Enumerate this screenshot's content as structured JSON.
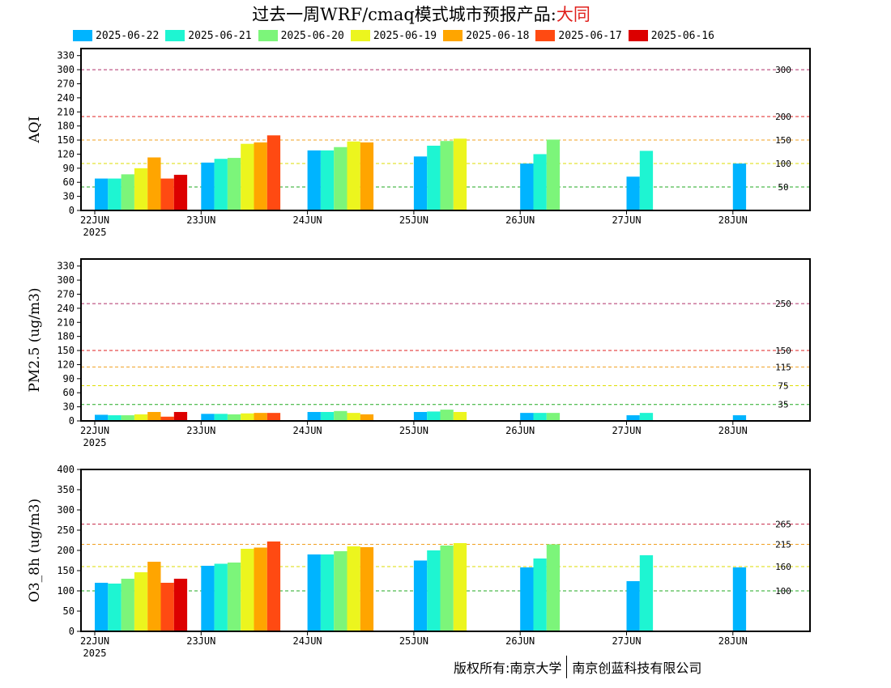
{
  "title": {
    "main": "过去一周WRF/cmaq模式城市预报产品:",
    "city": "大同"
  },
  "colors": {
    "title_city": "#e0201c",
    "series": [
      "#00b4ff",
      "#1ef5d2",
      "#7cf57a",
      "#ecf51e",
      "#ffa500",
      "#ff4a12",
      "#dc0000"
    ],
    "thresholds": {
      "green": "#22aa22",
      "yellow": "#dddd00",
      "orange": "#f0a020",
      "red": "#e02020",
      "purple": "#b0306a",
      "maroon": "#c83250"
    }
  },
  "legend": [
    "2025-06-22",
    "2025-06-21",
    "2025-06-20",
    "2025-06-19",
    "2025-06-18",
    "2025-06-17",
    "2025-06-16"
  ],
  "copyright": {
    "left": "版权所有:南京大学",
    "right": "南京创蓝科技有限公司"
  },
  "chart_data": [
    {
      "type": "bar",
      "ylabel": "AQI",
      "ylim": [
        0,
        345
      ],
      "yticks": [
        0,
        30,
        60,
        90,
        120,
        150,
        180,
        210,
        240,
        270,
        300,
        330
      ],
      "categories": [
        "22JUN",
        "23JUN",
        "24JUN",
        "25JUN",
        "26JUN",
        "27JUN",
        "28JUN"
      ],
      "year_label": "2025",
      "series": [
        {
          "name": "2025-06-22",
          "values": [
            68,
            102,
            128,
            115,
            100,
            72,
            100
          ]
        },
        {
          "name": "2025-06-21",
          "values": [
            68,
            110,
            128,
            138,
            120,
            127,
            null
          ]
        },
        {
          "name": "2025-06-20",
          "values": [
            77,
            112,
            135,
            148,
            151,
            null,
            null
          ]
        },
        {
          "name": "2025-06-19",
          "values": [
            90,
            142,
            147,
            153,
            null,
            null,
            null
          ]
        },
        {
          "name": "2025-06-18",
          "values": [
            113,
            145,
            145,
            null,
            null,
            null,
            null
          ]
        },
        {
          "name": "2025-06-17",
          "values": [
            68,
            160,
            null,
            null,
            null,
            null,
            null
          ]
        },
        {
          "name": "2025-06-16",
          "values": [
            76,
            null,
            null,
            null,
            null,
            null,
            null
          ]
        }
      ],
      "thresholds": [
        {
          "value": 50,
          "label": "50",
          "color": "green"
        },
        {
          "value": 100,
          "label": "100",
          "color": "yellow"
        },
        {
          "value": 150,
          "label": "150",
          "color": "orange"
        },
        {
          "value": 200,
          "label": "200",
          "color": "red"
        },
        {
          "value": 300,
          "label": "300",
          "color": "purple"
        }
      ]
    },
    {
      "type": "bar",
      "ylabel": "PM2.5 (ug/m3)",
      "ylim": [
        0,
        345
      ],
      "yticks": [
        0,
        30,
        60,
        90,
        120,
        150,
        180,
        210,
        240,
        270,
        300,
        330
      ],
      "categories": [
        "22JUN",
        "23JUN",
        "24JUN",
        "25JUN",
        "26JUN",
        "27JUN",
        "28JUN"
      ],
      "year_label": "2025",
      "series": [
        {
          "name": "2025-06-22",
          "values": [
            13,
            15,
            19,
            19,
            17,
            12,
            12
          ]
        },
        {
          "name": "2025-06-21",
          "values": [
            12,
            15,
            19,
            20,
            17,
            17,
            null
          ]
        },
        {
          "name": "2025-06-20",
          "values": [
            12,
            14,
            21,
            24,
            17,
            null,
            null
          ]
        },
        {
          "name": "2025-06-19",
          "values": [
            14,
            16,
            17,
            19,
            null,
            null,
            null
          ]
        },
        {
          "name": "2025-06-18",
          "values": [
            19,
            17,
            14,
            null,
            null,
            null,
            null
          ]
        },
        {
          "name": "2025-06-17",
          "values": [
            9,
            17,
            null,
            null,
            null,
            null,
            null
          ]
        },
        {
          "name": "2025-06-16",
          "values": [
            19,
            null,
            null,
            null,
            null,
            null,
            null
          ]
        }
      ],
      "thresholds": [
        {
          "value": 35,
          "label": "35",
          "color": "green"
        },
        {
          "value": 75,
          "label": "75",
          "color": "yellow"
        },
        {
          "value": 115,
          "label": "115",
          "color": "orange"
        },
        {
          "value": 150,
          "label": "150",
          "color": "red"
        },
        {
          "value": 250,
          "label": "250",
          "color": "purple"
        }
      ]
    },
    {
      "type": "bar",
      "ylabel": "O3_8h (ug/m3)",
      "ylim": [
        0,
        400
      ],
      "yticks": [
        0,
        50,
        100,
        150,
        200,
        250,
        300,
        350,
        400
      ],
      "categories": [
        "22JUN",
        "23JUN",
        "24JUN",
        "25JUN",
        "26JUN",
        "27JUN",
        "28JUN"
      ],
      "year_label": "2025",
      "series": [
        {
          "name": "2025-06-22",
          "values": [
            120,
            162,
            190,
            175,
            158,
            124,
            158
          ]
        },
        {
          "name": "2025-06-21",
          "values": [
            118,
            167,
            190,
            200,
            180,
            188,
            null
          ]
        },
        {
          "name": "2025-06-20",
          "values": [
            130,
            170,
            198,
            212,
            215,
            null,
            null
          ]
        },
        {
          "name": "2025-06-19",
          "values": [
            146,
            204,
            210,
            218,
            null,
            null,
            null
          ]
        },
        {
          "name": "2025-06-18",
          "values": [
            172,
            207,
            208,
            null,
            null,
            null,
            null
          ]
        },
        {
          "name": "2025-06-17",
          "values": [
            120,
            222,
            null,
            null,
            null,
            null,
            null
          ]
        },
        {
          "name": "2025-06-16",
          "values": [
            130,
            null,
            null,
            null,
            null,
            null,
            null
          ]
        }
      ],
      "thresholds": [
        {
          "value": 100,
          "label": "100",
          "color": "green"
        },
        {
          "value": 160,
          "label": "160",
          "color": "yellow"
        },
        {
          "value": 215,
          "label": "215",
          "color": "orange"
        },
        {
          "value": 265,
          "label": "265",
          "color": "maroon"
        }
      ]
    }
  ]
}
